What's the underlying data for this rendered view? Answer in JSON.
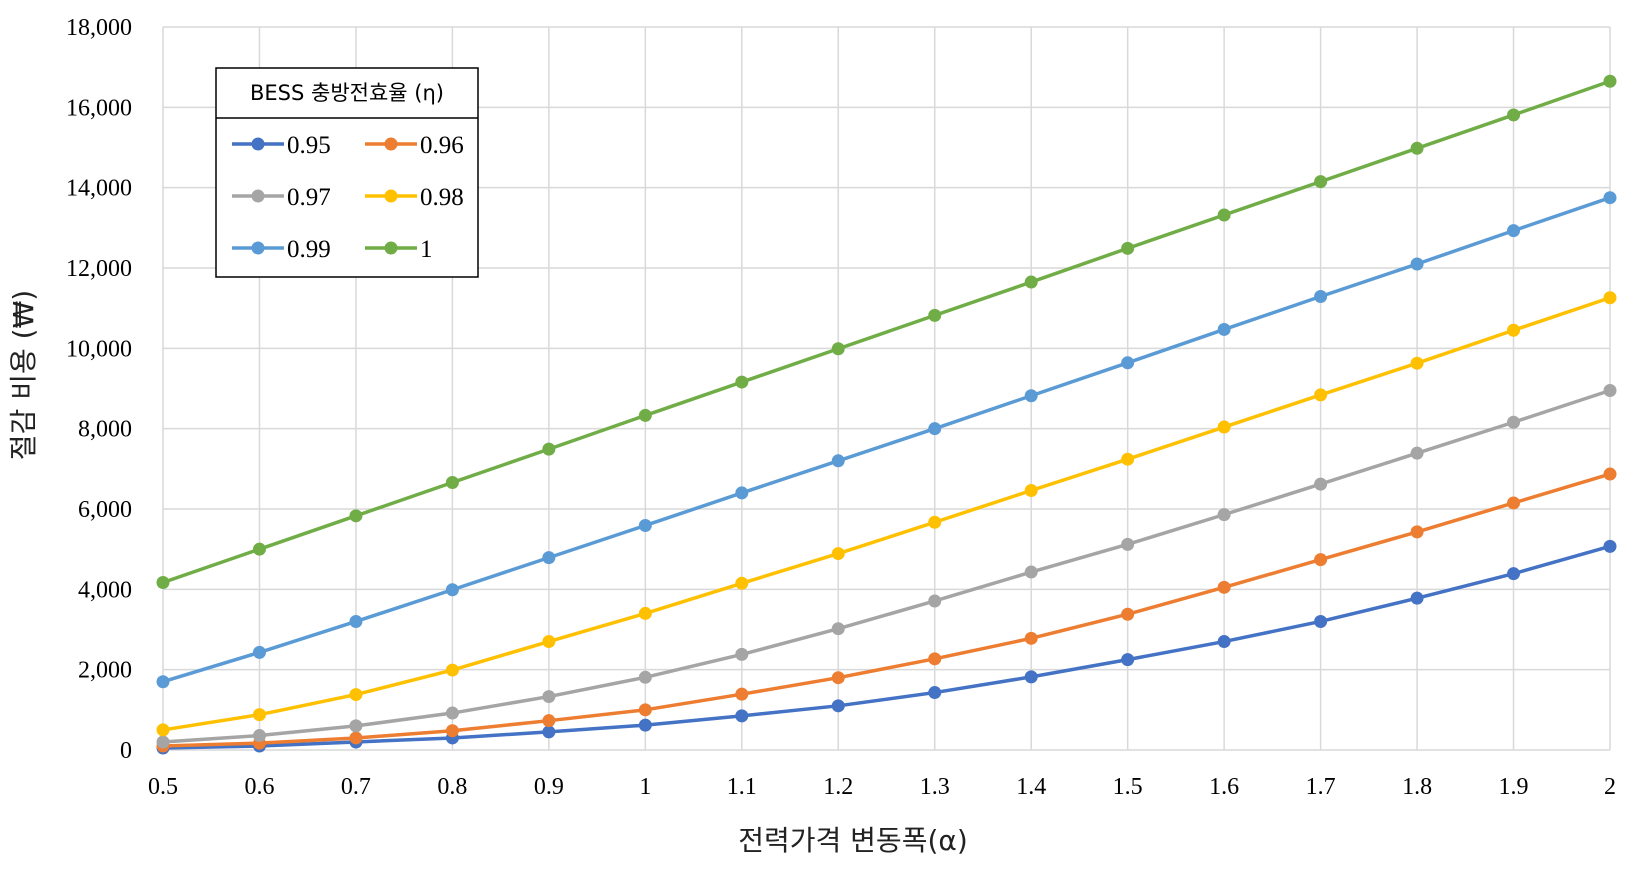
{
  "chart_data": {
    "type": "line",
    "xlabel": "전력가격 변동폭(α)",
    "ylabel": "절감 비용 (₩)",
    "x": [
      "0.5",
      "0.6",
      "0.7",
      "0.8",
      "0.9",
      "1",
      "1.1",
      "1.2",
      "1.3",
      "1.4",
      "1.5",
      "1.6",
      "1.7",
      "1.8",
      "1.9",
      "2"
    ],
    "ylim": [
      0,
      18000
    ],
    "yticks": [
      "0",
      "2,000",
      "4,000",
      "6,000",
      "8,000",
      "10,000",
      "12,000",
      "14,000",
      "16,000",
      "18,000"
    ],
    "grid": "vertical and horizontal",
    "legend": {
      "title": "BESS 충방전효율 (η)",
      "placement": "top-left"
    },
    "series": [
      {
        "name": "0.95",
        "color": "#4472C4",
        "values": [
          50,
          100,
          200,
          300,
          450,
          620,
          850,
          1100,
          1430,
          1820,
          2250,
          2700,
          3200,
          3780,
          4390,
          5070
        ]
      },
      {
        "name": "0.96",
        "color": "#ED7D31",
        "values": [
          100,
          170,
          300,
          480,
          730,
          1000,
          1390,
          1800,
          2270,
          2780,
          3380,
          4050,
          4740,
          5430,
          6150,
          6870
        ]
      },
      {
        "name": "0.97",
        "color": "#A5A5A5",
        "values": [
          200,
          360,
          600,
          920,
          1330,
          1810,
          2380,
          3020,
          3710,
          4430,
          5120,
          5860,
          6620,
          7390,
          8160,
          8950
        ]
      },
      {
        "name": "0.98",
        "color": "#FFC000",
        "values": [
          500,
          880,
          1380,
          1990,
          2700,
          3400,
          4150,
          4890,
          5670,
          6460,
          7240,
          8040,
          8840,
          9630,
          10450,
          11260
        ]
      },
      {
        "name": "0.99",
        "color": "#5B9BD5",
        "values": [
          1700,
          2430,
          3200,
          3990,
          4790,
          5590,
          6400,
          7200,
          8000,
          8820,
          9640,
          10470,
          11290,
          12100,
          12930,
          13750
        ]
      },
      {
        "name": "1",
        "color": "#70AD47",
        "values": [
          4170,
          5000,
          5830,
          6660,
          7490,
          8330,
          9160,
          9990,
          10820,
          11650,
          12490,
          13320,
          14150,
          14980,
          15810,
          16650
        ]
      }
    ]
  }
}
